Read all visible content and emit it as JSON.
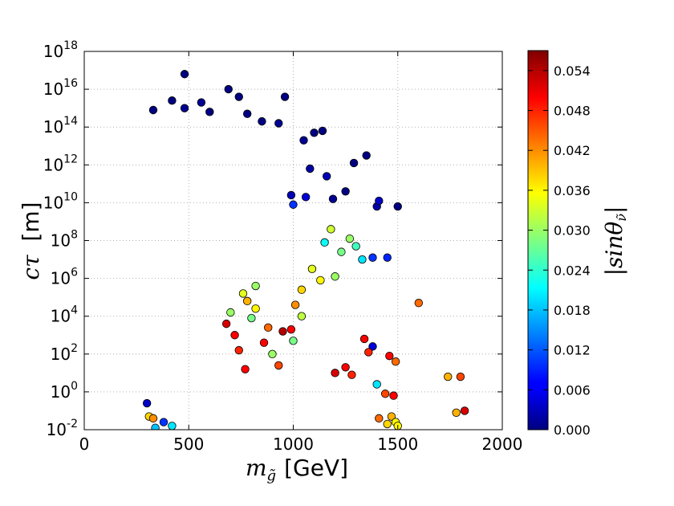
{
  "chart_data": {
    "type": "scatter",
    "xlabel": {
      "math": "m",
      "sub": "g̃",
      "unit": "[GeV]"
    },
    "ylabel": {
      "math": "cτ",
      "unit": "[m]"
    },
    "xlim": [
      0,
      2000
    ],
    "ylim_log10": [
      -2,
      18
    ],
    "xticks": [
      "0",
      "500",
      "1000",
      "1500",
      "2000"
    ],
    "yticks": [
      {
        "base": "10",
        "exp": "-2"
      },
      {
        "base": "10",
        "exp": "0"
      },
      {
        "base": "10",
        "exp": "2"
      },
      {
        "base": "10",
        "exp": "4"
      },
      {
        "base": "10",
        "exp": "6"
      },
      {
        "base": "10",
        "exp": "8"
      },
      {
        "base": "10",
        "exp": "10"
      },
      {
        "base": "10",
        "exp": "12"
      },
      {
        "base": "10",
        "exp": "14"
      },
      {
        "base": "10",
        "exp": "16"
      },
      {
        "base": "10",
        "exp": "18"
      }
    ],
    "grid": true,
    "colorbar": {
      "label": "|sinθ",
      "label_sub": "ν̃",
      "label_end": "|",
      "range": [
        0.0,
        0.057
      ],
      "ticks": [
        "0.000",
        "0.006",
        "0.012",
        "0.018",
        "0.024",
        "0.030",
        "0.036",
        "0.042",
        "0.048",
        "0.054"
      ],
      "colormap": "jet"
    },
    "points": [
      [
        480,
        16.8,
        0.0
      ],
      [
        690,
        16.0,
        0.0
      ],
      [
        740,
        15.6,
        0.0
      ],
      [
        960,
        15.6,
        0.0
      ],
      [
        420,
        15.4,
        0.0
      ],
      [
        560,
        15.3,
        0.001
      ],
      [
        330,
        14.9,
        0.0
      ],
      [
        480,
        15.0,
        0.001
      ],
      [
        600,
        14.8,
        0.0
      ],
      [
        780,
        14.7,
        0.0
      ],
      [
        850,
        14.3,
        0.0
      ],
      [
        930,
        14.2,
        0.001
      ],
      [
        1140,
        13.8,
        0.0
      ],
      [
        1100,
        13.7,
        0.0
      ],
      [
        1050,
        13.3,
        0.001
      ],
      [
        1350,
        12.5,
        0.0
      ],
      [
        1290,
        12.1,
        0.0
      ],
      [
        1080,
        11.8,
        0.002
      ],
      [
        1160,
        11.4,
        0.003
      ],
      [
        1250,
        10.6,
        0.0
      ],
      [
        1190,
        10.2,
        0.001
      ],
      [
        1400,
        9.8,
        0.002
      ],
      [
        1500,
        9.8,
        0.0
      ],
      [
        1410,
        10.1,
        0.004
      ],
      [
        990,
        10.4,
        0.003
      ],
      [
        1000,
        9.9,
        0.01
      ],
      [
        1060,
        10.3,
        0.005
      ],
      [
        1380,
        7.1,
        0.01
      ],
      [
        1450,
        7.1,
        0.009
      ],
      [
        1330,
        7.0,
        0.02
      ],
      [
        1300,
        7.7,
        0.025
      ],
      [
        1270,
        8.1,
        0.03
      ],
      [
        1230,
        7.4,
        0.028
      ],
      [
        1180,
        8.6,
        0.033
      ],
      [
        1150,
        7.9,
        0.022
      ],
      [
        1200,
        6.1,
        0.03
      ],
      [
        1130,
        5.9,
        0.036
      ],
      [
        1090,
        6.5,
        0.034
      ],
      [
        1040,
        5.4,
        0.038
      ],
      [
        1010,
        4.6,
        0.042
      ],
      [
        1040,
        4.0,
        0.032
      ],
      [
        990,
        3.3,
        0.05
      ],
      [
        950,
        3.2,
        0.054
      ],
      [
        1000,
        2.7,
        0.028
      ],
      [
        1600,
        4.7,
        0.044
      ],
      [
        1340,
        2.8,
        0.05
      ],
      [
        1380,
        2.4,
        0.005
      ],
      [
        1360,
        2.1,
        0.048
      ],
      [
        1460,
        1.9,
        0.05
      ],
      [
        1490,
        1.6,
        0.044
      ],
      [
        1250,
        1.3,
        0.05
      ],
      [
        1200,
        1.0,
        0.052
      ],
      [
        1280,
        0.9,
        0.048
      ],
      [
        1740,
        0.8,
        0.04
      ],
      [
        1800,
        0.8,
        0.046
      ],
      [
        1780,
        -1.1,
        0.04
      ],
      [
        1820,
        -1.0,
        0.052
      ],
      [
        1400,
        0.4,
        0.02
      ],
      [
        1440,
        -0.1,
        0.046
      ],
      [
        1480,
        -0.2,
        0.05
      ],
      [
        1470,
        -1.3,
        0.04
      ],
      [
        1450,
        -1.7,
        0.038
      ],
      [
        1490,
        -1.6,
        0.036
      ],
      [
        1410,
        -1.4,
        0.044
      ],
      [
        1500,
        -1.8,
        0.036
      ],
      [
        700,
        4.2,
        0.03
      ],
      [
        720,
        3.0,
        0.05
      ],
      [
        680,
        3.6,
        0.052
      ],
      [
        740,
        2.2,
        0.048
      ],
      [
        770,
        1.2,
        0.05
      ],
      [
        800,
        3.9,
        0.028
      ],
      [
        820,
        4.4,
        0.036
      ],
      [
        780,
        4.8,
        0.04
      ],
      [
        820,
        5.6,
        0.03
      ],
      [
        760,
        5.2,
        0.034
      ],
      [
        300,
        -0.6,
        0.004
      ],
      [
        310,
        -1.3,
        0.038
      ],
      [
        340,
        -1.9,
        0.018
      ],
      [
        420,
        -1.8,
        0.02
      ],
      [
        380,
        -1.6,
        0.01
      ],
      [
        330,
        -1.4,
        0.042
      ],
      [
        900,
        2.0,
        0.03
      ],
      [
        930,
        1.4,
        0.046
      ],
      [
        860,
        2.6,
        0.05
      ],
      [
        880,
        3.4,
        0.044
      ]
    ]
  }
}
